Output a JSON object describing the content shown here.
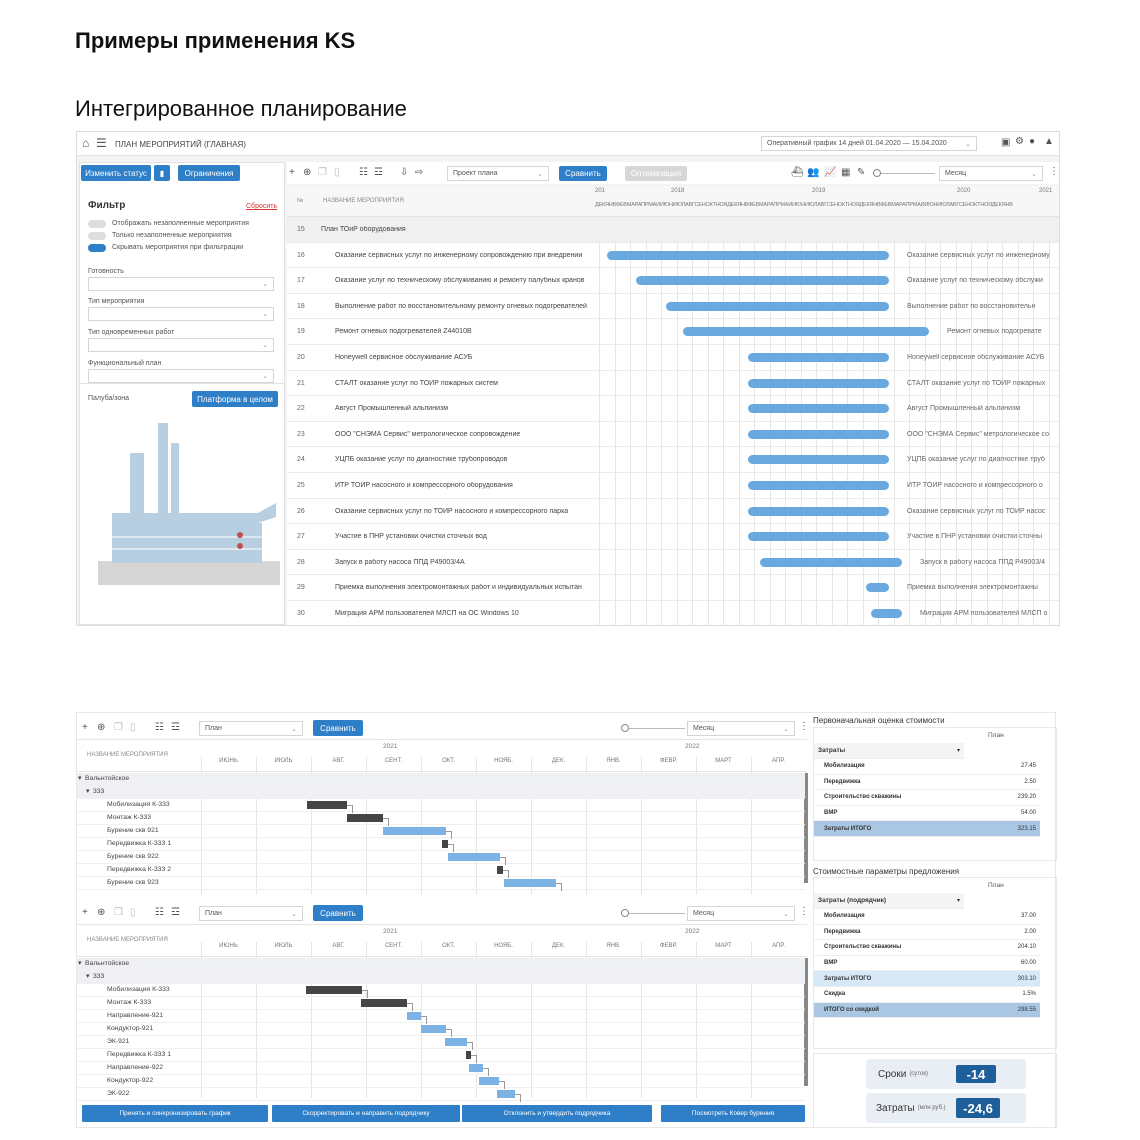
{
  "headings": {
    "title": "Примеры применения KS",
    "subtitle": "Интегрированное планирование"
  },
  "top": {
    "app_title": "ПЛАН МЕРОПРИЯТИЙ (ГЛАВНАЯ)",
    "schedule_select": "Оперативный график 14 дней 01.04.2020 — 15.04.2020",
    "btn_change_status": "Изменить статус",
    "btn_limits": "Ограничения",
    "project_select": "Проект плана",
    "btn_compare": "Сравнить",
    "btn_optimize": "Оптимизация",
    "period_select": "Месяц",
    "filter": {
      "title": "Фильтр",
      "reset": "Сбросить",
      "toggles": [
        "Отображать незаполненные мероприятия",
        "Только незаполненные мероприятия",
        "Скрывать мероприятия при фильтрации"
      ],
      "fields": [
        "Готовность",
        "Тип мероприятия",
        "Тип одновременных работ",
        "Функциональный план"
      ],
      "deck_label": "Палуба/зона",
      "platform_btn": "Платформа в целом"
    },
    "col_num": "№",
    "col_name": "НАЗВАНИЕ МЕРОПРИЯТИЯ",
    "years": [
      "201",
      "2018",
      "2019",
      "2020",
      "2021"
    ],
    "months": "ДЕКЯНВФЕВМАРАПРМАЙИЮНИЮЛАВГСЕНОКТНОЯДЕКЯНВФЕВМАРАПРМАЙИЮНИЮЛАВГСЕНОКТНОЯДЕКЯНВФЕВМАРАПРМАЙИЮНИЮЛАВГСЕНОКТНОЯДЕКЯНВ",
    "group_row": {
      "num": "15",
      "name": "План ТОиР оборудования"
    },
    "rows": [
      {
        "num": "16",
        "name": "Оказание сервисных услуг по инженерному сопровождению при внедрении",
        "label": "Оказание сервисных услуг по инженерному"
      },
      {
        "num": "17",
        "name": "Оказание услуг по техническому обслуживанию и ремонту палубных кранов",
        "label": "Оказание услуг по техническому обслужи"
      },
      {
        "num": "18",
        "name": "Выполнение работ по восстановительному ремонту огневых подогревателей",
        "label": "Выполнение работ по восстановительн"
      },
      {
        "num": "19",
        "name": "Ремонт огневых подогревателей Z44010B",
        "label": "Ремонт огневых подогревате"
      },
      {
        "num": "20",
        "name": "Honeywell сервисное обслуживание АСУБ",
        "label": "Honeywell сервисное обслуживание АСУБ"
      },
      {
        "num": "21",
        "name": "СТАЛТ оказание услуг по ТОИР пожарных систем",
        "label": "СТАЛТ оказание услуг по ТОИР пожарных"
      },
      {
        "num": "22",
        "name": "Август Промышленный альпинизм",
        "label": "Август Промышленный альпинизм"
      },
      {
        "num": "23",
        "name": "ООО \"СНЭМА Сервис\" метрологическое сопровождение",
        "label": "ООО \"СНЭМА Сервис\" метрологическое со"
      },
      {
        "num": "24",
        "name": "УЦПБ оказание услуг по диагностике трубопроводов",
        "label": "УЦПБ оказание услуг по диагностике труб"
      },
      {
        "num": "25",
        "name": "ИТР ТОИР насосного и компрессорного оборудования",
        "label": "ИТР ТОИР насосного и компрессорного о"
      },
      {
        "num": "26",
        "name": "Оказание сервисных услуг по ТОИР насосного и компрессорного парка",
        "label": "Оказание сервисных услуг по ТОИР насос"
      },
      {
        "num": "27",
        "name": "Участие в ПНР установки очистки сточных вод",
        "label": "Участие в ПНР установки очистки сточны"
      },
      {
        "num": "28",
        "name": "Запуск в работу насоса ППД Р49003/4А",
        "label": "Запуск в работу насоса ППД Р49003/4"
      },
      {
        "num": "29",
        "name": "Приемка выполнения электромонтажных работ и индивидуальных испытан",
        "label": "Приемка выполнения электромонтажны"
      },
      {
        "num": "30",
        "name": "Миграция АРМ пользователей МЛСП на ОС Windows 10",
        "label": "Миграция АРМ пользователей МЛСП о"
      }
    ]
  },
  "bottom": {
    "g1": {
      "select": "План",
      "compare": "Сравнить",
      "period": "Месяц",
      "col_name": "НАЗВАНИЕ МЕРОПРИЯТИЯ",
      "years": [
        "2021",
        "2022"
      ],
      "months": [
        "ИЮНЬ",
        "ИЮЛЬ",
        "АВГ.",
        "СЕНТ.",
        "ОКТ.",
        "НОЯБ.",
        "ДЕК.",
        "ЯНВ.",
        "ФЕВР.",
        "МАРТ",
        "АПР."
      ],
      "rows": [
        "Вальнтойское",
        "333",
        "Мобилизация К-333",
        "Монтаж К-333",
        "Бурение скв 921",
        "Передвижка К-333 1",
        "Бурение скв 922",
        "Передвижка К-333 2",
        "Бурение скв 923"
      ]
    },
    "g2": {
      "select": "План",
      "compare": "Сравнить",
      "period": "Месяц",
      "col_name": "НАЗВАНИЕ МЕРОПРИЯТИЯ",
      "years": [
        "2021",
        "2022"
      ],
      "months": [
        "ИЮНЬ",
        "ИЮЛЬ",
        "АВГ.",
        "СЕНТ.",
        "ОКТ.",
        "НОЯБ.",
        "ДЕК.",
        "ЯНВ.",
        "ФЕВР.",
        "МАРТ",
        "АПР."
      ],
      "rows": [
        "Вальнтойское",
        "333",
        "Мобилизация К-333",
        "Монтаж К-333",
        "Направление-921",
        "Кондуктор-921",
        "ЭК-921",
        "Передвижка К-333 1",
        "Направление-922",
        "Кондуктор-922",
        "ЭК-922"
      ]
    },
    "cost1": {
      "title": "Первоначальная оценка стоимости",
      "col": "План",
      "group": "Затраты",
      "rows": [
        {
          "k": "Мобилизация",
          "v": "27.45"
        },
        {
          "k": "Передвижка",
          "v": "2.50"
        },
        {
          "k": "Строительство скважины",
          "v": "239.20"
        },
        {
          "k": "ВМР",
          "v": "54.00"
        },
        {
          "k": "Затраты ИТОГО",
          "v": "323.15"
        }
      ]
    },
    "cost2": {
      "title": "Стоимостные параметры предложения",
      "col": "План",
      "group": "Затраты (подрядчик)",
      "rows": [
        {
          "k": "Мобилизация",
          "v": "37.00"
        },
        {
          "k": "Передвижка",
          "v": "2.00"
        },
        {
          "k": "Строительство скважины",
          "v": "204.10"
        },
        {
          "k": "ВМР",
          "v": "60.00"
        },
        {
          "k": "Затраты ИТОГО",
          "v": "303.10"
        },
        {
          "k": "Скидка",
          "v": "1.5%"
        },
        {
          "k": "ИТОГО со скидкой",
          "v": "298.55"
        }
      ]
    },
    "kpi": [
      {
        "label": "Сроки",
        "unit": "(суток)",
        "value": "-14"
      },
      {
        "label": "Затраты",
        "unit": "(млн руб.)",
        "value": "-24,6"
      }
    ],
    "actions": [
      "Принять и синхронизировать график",
      "Скорректировать и направить подрядчику",
      "Отклонить и утвердить подрядчика",
      "Посмотреть Ковер бурения"
    ]
  }
}
